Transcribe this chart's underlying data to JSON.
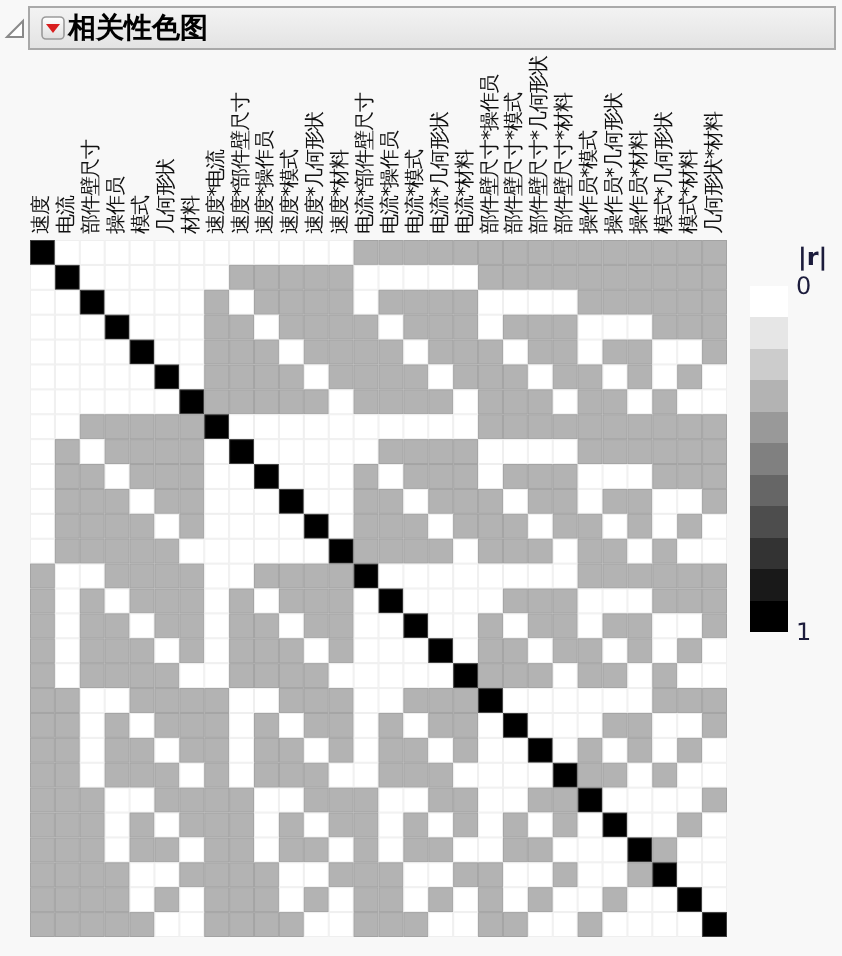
{
  "chart_data": {
    "type": "heatmap",
    "title": "相关性色图",
    "categories": [
      "速度",
      "电流",
      "部件壁尺寸",
      "操作员",
      "模式",
      "几何形状",
      "材料",
      "速度*电流",
      "速度*部件壁尺寸",
      "速度*操作员",
      "速度*模式",
      "速度*几何形状",
      "速度*材料",
      "电流*部件壁尺寸",
      "电流*操作员",
      "电流*模式",
      "电流*几何形状",
      "电流*材料",
      "部件壁尺寸*操作员",
      "部件壁尺寸*模式",
      "部件壁尺寸*几何形状",
      "部件壁尺寸*材料",
      "操作员*模式",
      "操作员*几何形状",
      "操作员*材料",
      "模式*几何形状",
      "模式*材料",
      "几何形状*材料"
    ],
    "y_categories": [
      null,
      null,
      null,
      null,
      null,
      null,
      null,
      null,
      null,
      null,
      null,
      null,
      null,
      null,
      null,
      null,
      null,
      null,
      null,
      null,
      null,
      null,
      null,
      null,
      null,
      null,
      null,
      null
    ],
    "cells": [
      [
        1,
        0,
        0,
        0,
        0,
        0,
        0,
        0,
        0,
        0,
        0,
        0,
        0,
        0.3,
        0.3,
        0.3,
        0.3,
        0.3,
        0.3,
        0.3,
        0.3,
        0.3,
        0.3,
        0.3,
        0.3,
        0.3,
        0.3,
        0.3
      ],
      [
        0,
        1,
        0,
        0,
        0,
        0,
        0,
        0,
        0.3,
        0.3,
        0.3,
        0.3,
        0.3,
        0,
        0,
        0,
        0,
        0,
        0.3,
        0.3,
        0.3,
        0.3,
        0.3,
        0.3,
        0.3,
        0.3,
        0.3,
        0.3
      ],
      [
        0,
        0,
        1,
        0,
        0,
        0,
        0,
        0.3,
        0,
        0.3,
        0.3,
        0.3,
        0.3,
        0,
        0.3,
        0.3,
        0.3,
        0.3,
        0,
        0,
        0,
        0,
        0.3,
        0.3,
        0.3,
        0.3,
        0.3,
        0.3
      ],
      [
        0,
        0,
        0,
        1,
        0,
        0,
        0,
        0.3,
        0.3,
        0,
        0.3,
        0.3,
        0.3,
        0.3,
        0,
        0.3,
        0.3,
        0.3,
        0,
        0.3,
        0.3,
        0.3,
        0,
        0,
        0,
        0.3,
        0.3,
        0.3
      ],
      [
        0,
        0,
        0,
        0,
        1,
        0,
        0,
        0.3,
        0.3,
        0.3,
        0,
        0.3,
        0.3,
        0.3,
        0.3,
        0,
        0.3,
        0.3,
        0.3,
        0,
        0.3,
        0.3,
        0,
        0.3,
        0.3,
        0,
        0,
        0.3
      ],
      [
        0,
        0,
        0,
        0,
        0,
        1,
        0,
        0.3,
        0.3,
        0.3,
        0.3,
        0,
        0.3,
        0.3,
        0.3,
        0.3,
        0,
        0.3,
        0.3,
        0.3,
        0,
        0.3,
        0.3,
        0,
        0.3,
        0,
        0.3,
        0
      ],
      [
        0,
        0,
        0,
        0,
        0,
        0,
        1,
        0.3,
        0.3,
        0.3,
        0.3,
        0.3,
        0,
        0.3,
        0.3,
        0.3,
        0.3,
        0,
        0.3,
        0.3,
        0.3,
        0,
        0.3,
        0.3,
        0,
        0.3,
        0,
        0
      ],
      [
        0,
        0,
        0.3,
        0.3,
        0.3,
        0.3,
        0.3,
        1,
        0,
        0,
        0,
        0,
        0,
        0,
        0,
        0,
        0,
        0,
        0.3,
        0.3,
        0.3,
        0.3,
        0.3,
        0.3,
        0.3,
        0.3,
        0.3,
        0.3
      ],
      [
        0,
        0.3,
        0,
        0.3,
        0.3,
        0.3,
        0.3,
        0,
        1,
        0,
        0,
        0,
        0,
        0,
        0.3,
        0.3,
        0.3,
        0.3,
        0,
        0,
        0,
        0,
        0.3,
        0.3,
        0.3,
        0.3,
        0.3,
        0.3
      ],
      [
        0,
        0.3,
        0.3,
        0,
        0.3,
        0.3,
        0.3,
        0,
        0,
        1,
        0,
        0,
        0,
        0.3,
        0,
        0.3,
        0.3,
        0.3,
        0,
        0.3,
        0.3,
        0.3,
        0,
        0,
        0,
        0.3,
        0.3,
        0.3
      ],
      [
        0,
        0.3,
        0.3,
        0.3,
        0,
        0.3,
        0.3,
        0,
        0,
        0,
        1,
        0,
        0,
        0.3,
        0.3,
        0,
        0.3,
        0.3,
        0.3,
        0,
        0.3,
        0.3,
        0,
        0.3,
        0.3,
        0,
        0,
        0.3
      ],
      [
        0,
        0.3,
        0.3,
        0.3,
        0.3,
        0,
        0.3,
        0,
        0,
        0,
        0,
        1,
        0,
        0.3,
        0.3,
        0.3,
        0,
        0.3,
        0.3,
        0.3,
        0,
        0.3,
        0.3,
        0,
        0.3,
        0,
        0.3,
        0
      ],
      [
        0,
        0.3,
        0.3,
        0.3,
        0.3,
        0.3,
        0,
        0,
        0,
        0,
        0,
        0,
        1,
        0.3,
        0.3,
        0.3,
        0.3,
        0,
        0.3,
        0.3,
        0.3,
        0,
        0.3,
        0.3,
        0,
        0.3,
        0,
        0
      ],
      [
        0.3,
        0,
        0,
        0.3,
        0.3,
        0.3,
        0.3,
        0,
        0,
        0.3,
        0.3,
        0.3,
        0.3,
        1,
        0,
        0,
        0,
        0,
        0,
        0,
        0,
        0,
        0.3,
        0.3,
        0.3,
        0.3,
        0.3,
        0.3
      ],
      [
        0.3,
        0,
        0.3,
        0,
        0.3,
        0.3,
        0.3,
        0,
        0.3,
        0,
        0.3,
        0.3,
        0.3,
        0,
        1,
        0,
        0,
        0,
        0,
        0.3,
        0.3,
        0.3,
        0,
        0,
        0,
        0.3,
        0.3,
        0.3
      ],
      [
        0.3,
        0,
        0.3,
        0.3,
        0,
        0.3,
        0.3,
        0,
        0.3,
        0.3,
        0,
        0.3,
        0.3,
        0,
        0,
        1,
        0,
        0,
        0.3,
        0,
        0.3,
        0.3,
        0,
        0.3,
        0.3,
        0,
        0,
        0.3
      ],
      [
        0.3,
        0,
        0.3,
        0.3,
        0.3,
        0,
        0.3,
        0,
        0.3,
        0.3,
        0.3,
        0,
        0.3,
        0,
        0,
        0,
        1,
        0,
        0.3,
        0.3,
        0,
        0.3,
        0.3,
        0,
        0.3,
        0,
        0.3,
        0
      ],
      [
        0.3,
        0,
        0.3,
        0.3,
        0.3,
        0.3,
        0,
        0,
        0.3,
        0.3,
        0.3,
        0.3,
        0,
        0,
        0,
        0,
        0,
        1,
        0.3,
        0.3,
        0.3,
        0,
        0.3,
        0.3,
        0,
        0.3,
        0,
        0
      ],
      [
        0.3,
        0.3,
        0,
        0,
        0.3,
        0.3,
        0.3,
        0.3,
        0,
        0,
        0.3,
        0.3,
        0.3,
        0,
        0,
        0.3,
        0.3,
        0.3,
        1,
        0,
        0,
        0,
        0,
        0,
        0,
        0.3,
        0.3,
        0.3
      ],
      [
        0.3,
        0.3,
        0,
        0.3,
        0,
        0.3,
        0.3,
        0.3,
        0,
        0.3,
        0,
        0.3,
        0.3,
        0,
        0.3,
        0,
        0.3,
        0.3,
        0,
        1,
        0,
        0,
        0,
        0.3,
        0.3,
        0,
        0,
        0.3
      ],
      [
        0.3,
        0.3,
        0,
        0.3,
        0.3,
        0,
        0.3,
        0.3,
        0,
        0.3,
        0.3,
        0,
        0.3,
        0,
        0.3,
        0.3,
        0,
        0.3,
        0,
        0,
        1,
        0,
        0.3,
        0,
        0.3,
        0,
        0.3,
        0
      ],
      [
        0.3,
        0.3,
        0,
        0.3,
        0.3,
        0.3,
        0,
        0.3,
        0,
        0.3,
        0.3,
        0.3,
        0,
        0,
        0.3,
        0.3,
        0.3,
        0,
        0,
        0,
        0,
        1,
        0.3,
        0.3,
        0,
        0.3,
        0,
        0
      ],
      [
        0.3,
        0.3,
        0.3,
        0,
        0,
        0.3,
        0.3,
        0.3,
        0.3,
        0,
        0,
        0.3,
        0.3,
        0.3,
        0,
        0,
        0.3,
        0.3,
        0,
        0,
        0.3,
        0.3,
        1,
        0,
        0,
        0,
        0,
        0.3
      ],
      [
        0.3,
        0.3,
        0.3,
        0,
        0.3,
        0,
        0.3,
        0.3,
        0.3,
        0,
        0.3,
        0,
        0.3,
        0.3,
        0,
        0.3,
        0,
        0.3,
        0,
        0.3,
        0,
        0.3,
        0,
        1,
        0,
        0,
        0.3,
        0
      ],
      [
        0.3,
        0.3,
        0.3,
        0,
        0.3,
        0.3,
        0,
        0.3,
        0.3,
        0,
        0.3,
        0.3,
        0,
        0.3,
        0,
        0.3,
        0.3,
        0,
        0,
        0.3,
        0.3,
        0,
        0,
        0,
        1,
        0.3,
        0,
        0
      ],
      [
        0.3,
        0.3,
        0.3,
        0.3,
        0,
        0,
        0.3,
        0.3,
        0.3,
        0.3,
        0,
        0,
        0.3,
        0.3,
        0.3,
        0,
        0,
        0.3,
        0.3,
        0,
        0,
        0.3,
        0,
        0,
        0.3,
        1,
        0,
        0
      ],
      [
        0.3,
        0.3,
        0.3,
        0.3,
        0,
        0.3,
        0,
        0.3,
        0.3,
        0.3,
        0,
        0.3,
        0,
        0.3,
        0.3,
        0,
        0.3,
        0,
        0.3,
        0,
        0.3,
        0,
        0,
        0.3,
        0,
        0,
        1,
        0
      ],
      [
        0.3,
        0.3,
        0.3,
        0.3,
        0.3,
        0,
        0,
        0.3,
        0.3,
        0.3,
        0.3,
        0,
        0,
        0.3,
        0.3,
        0.3,
        0,
        0,
        0.3,
        0.3,
        0,
        0,
        0.3,
        0,
        0,
        0,
        0,
        1
      ]
    ],
    "clabel": "|r|",
    "clim": [
      0,
      1
    ],
    "cticks": [
      0,
      1
    ]
  }
}
